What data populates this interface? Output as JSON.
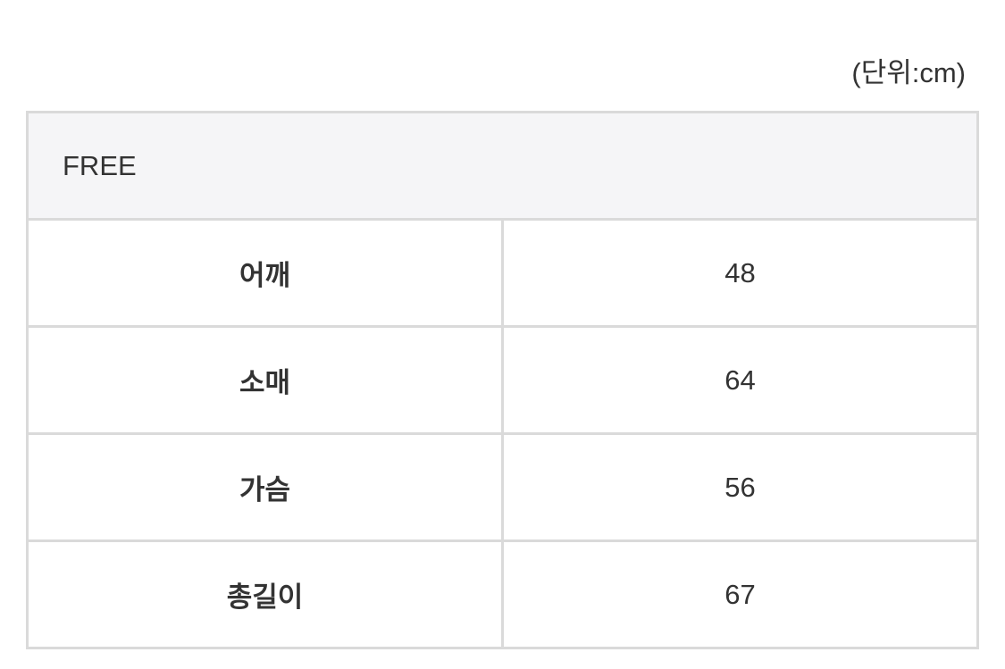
{
  "unit_label": "(단위:cm)",
  "table": {
    "size_header": "FREE",
    "rows": [
      {
        "label": "어깨",
        "value": "48"
      },
      {
        "label": "소매",
        "value": "64"
      },
      {
        "label": "가슴",
        "value": "56"
      },
      {
        "label": "총길이",
        "value": "67"
      }
    ]
  }
}
